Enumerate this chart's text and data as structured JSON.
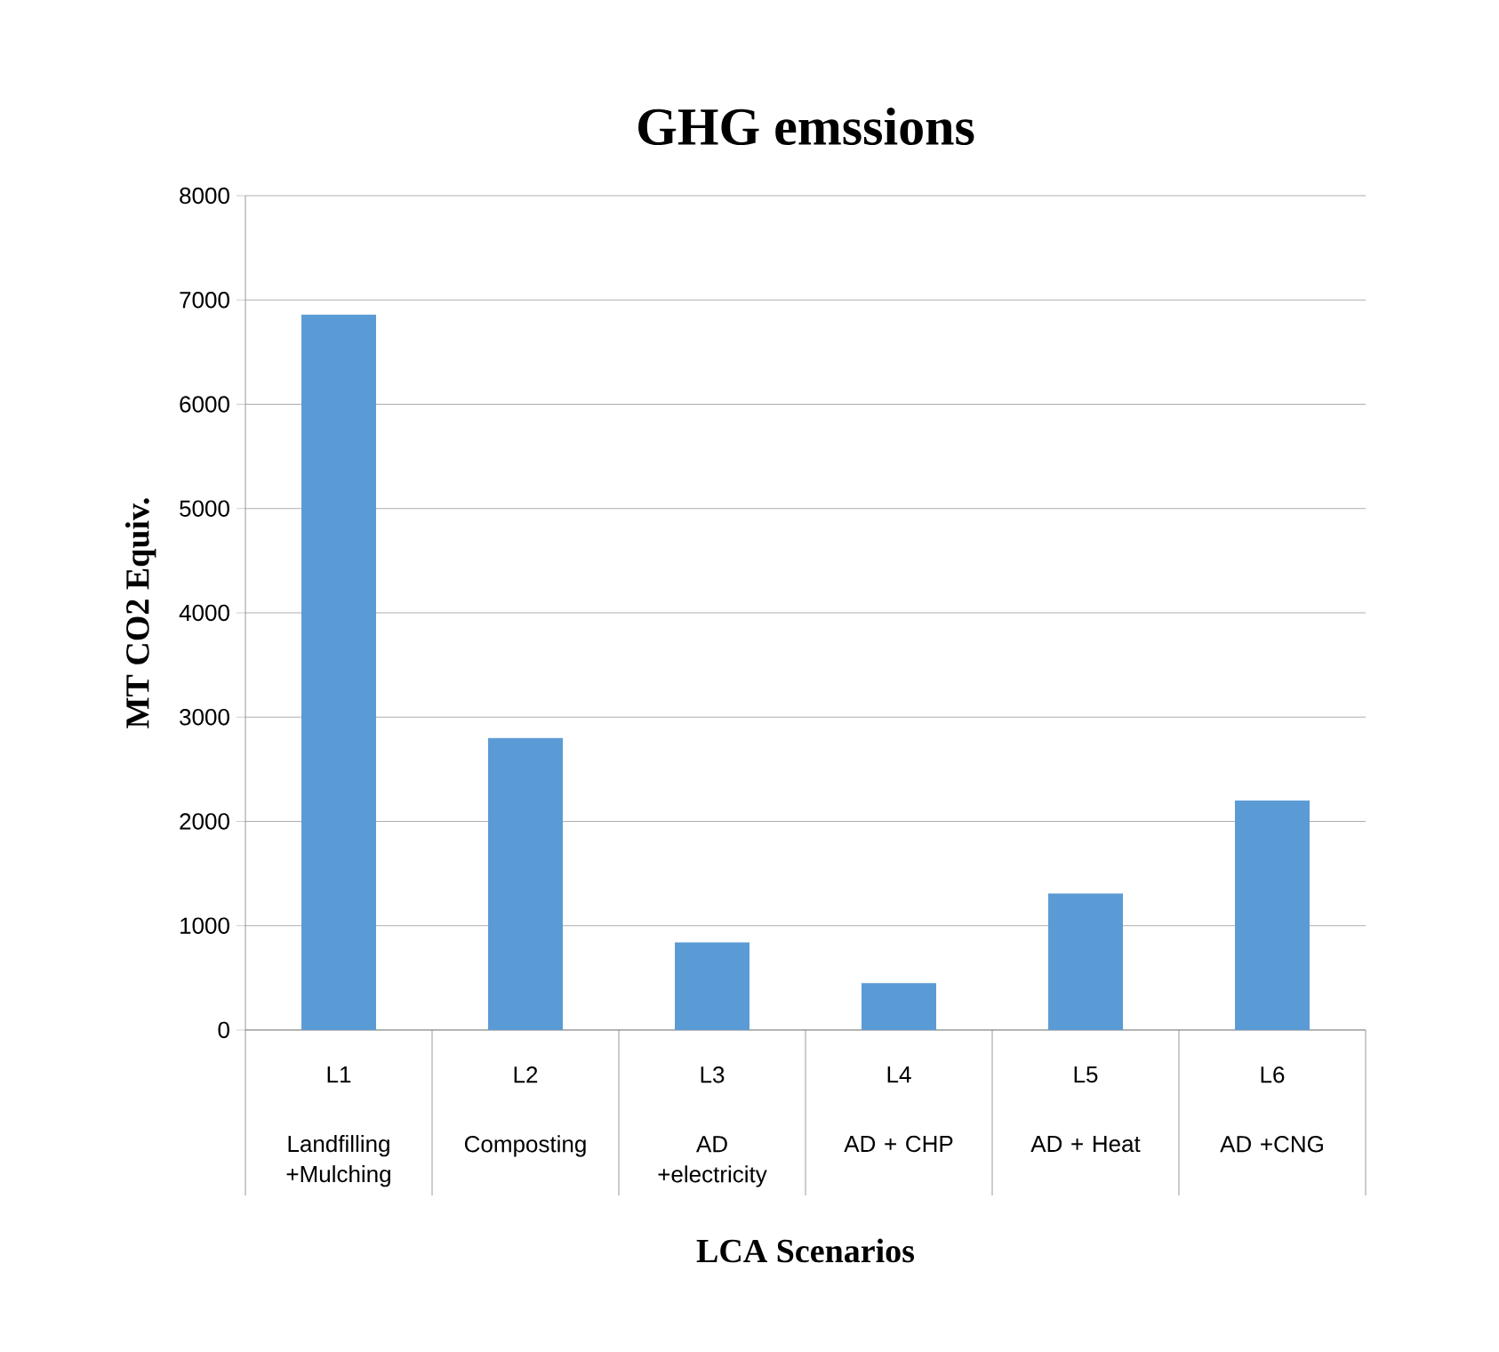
{
  "chart_data": {
    "type": "bar",
    "title": "GHG emssions",
    "xlabel": "LCA Scenarios",
    "ylabel": "MT CO2 Equiv.",
    "categories": [
      "L1",
      "L2",
      "L3",
      "L4",
      "L5",
      "L6"
    ],
    "values": [
      6860,
      2800,
      840,
      450,
      1310,
      2200
    ],
    "color": "#5b9bd5",
    "ylim": [
      0,
      8000
    ],
    "yticks": [
      0,
      1000,
      2000,
      3000,
      4000,
      5000,
      6000,
      7000,
      8000
    ],
    "grid": "y",
    "annotations": [
      "Landfilling +Mulching",
      "Composting",
      "AD +electricity",
      "AD + CHP",
      "AD + Heat",
      "AD +CNG"
    ]
  }
}
